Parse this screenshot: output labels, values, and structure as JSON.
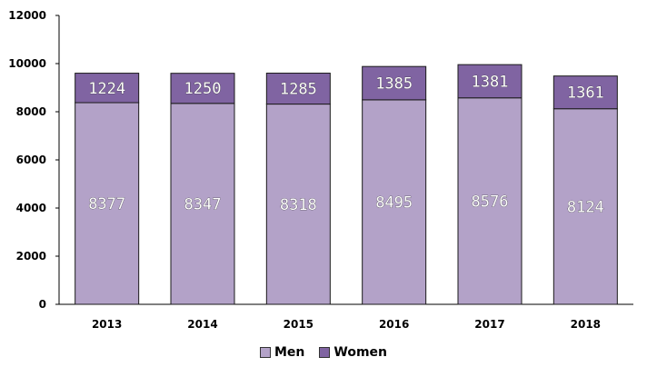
{
  "chart_data": {
    "type": "bar",
    "stacked": true,
    "categories": [
      "2013",
      "2014",
      "2015",
      "2016",
      "2017",
      "2018"
    ],
    "series": [
      {
        "name": "Men",
        "values": [
          8377,
          8347,
          8318,
          8495,
          8576,
          8124
        ],
        "color": "#b3a2c8"
      },
      {
        "name": "Women",
        "values": [
          1224,
          1250,
          1285,
          1385,
          1381,
          1361
        ],
        "color": "#8064a2"
      }
    ],
    "ylim": [
      0,
      12000
    ],
    "yticks": [
      "0",
      "2000",
      "4000",
      "6000",
      "8000",
      "10000",
      "12000"
    ],
    "grid": false,
    "legend_position": "bottom",
    "title": "",
    "xlabel": "",
    "ylabel": ""
  }
}
